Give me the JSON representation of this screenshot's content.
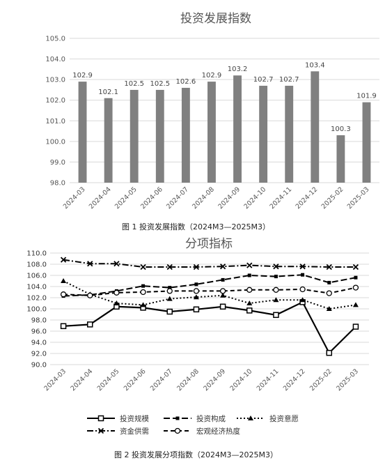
{
  "chart_data": [
    {
      "type": "bar",
      "title": "投资发展指数",
      "caption": "图 1  投资发展指数（2024M3—2025M3）",
      "categories": [
        "2024-03",
        "2024-04",
        "2024-05",
        "2024-06",
        "2024-07",
        "2024-08",
        "2024-09",
        "2024-10",
        "2024-11",
        "2024-12",
        "2025-02",
        "2025-03"
      ],
      "values": [
        102.9,
        102.1,
        102.5,
        102.5,
        102.6,
        102.9,
        103.2,
        102.7,
        102.7,
        103.4,
        100.3,
        101.9
      ],
      "value_labels": [
        "102.9",
        "102.1",
        "102.5",
        "102.5",
        "102.6",
        "102.9",
        "103.2",
        "102.7",
        "102.7",
        "103.4",
        "100.3",
        "101.9"
      ],
      "ylim": [
        98.0,
        105.0
      ],
      "yticks": [
        "98.0",
        "99.0",
        "100.0",
        "101.0",
        "102.0",
        "103.0",
        "104.0",
        "105.0"
      ],
      "grid": true,
      "bar_color": "#808080",
      "xlabel": "",
      "ylabel": ""
    },
    {
      "type": "line",
      "title": "分项指标",
      "caption": "图 2  投资发展分项指数（2024M3—2025M3）",
      "categories": [
        "2024-03",
        "2024-04",
        "2024-05",
        "2024-06",
        "2024-07",
        "2024-08",
        "2024-09",
        "2024-10",
        "2024-11",
        "2024-12",
        "2025-02",
        "2025-03"
      ],
      "ylim": [
        90.0,
        110.0
      ],
      "yticks": [
        "90.0",
        "92.0",
        "94.0",
        "96.0",
        "98.0",
        "100.0",
        "102.0",
        "104.0",
        "106.0",
        "108.0",
        "110.0"
      ],
      "grid": true,
      "legend_position": "bottom",
      "series": [
        {
          "name": "投资规模",
          "values": [
            96.9,
            97.2,
            100.4,
            100.2,
            99.5,
            99.9,
            100.4,
            99.7,
            98.9,
            101.2,
            92.1,
            96.8
          ],
          "style": "solid",
          "marker": "square"
        },
        {
          "name": "投资构成",
          "values": [
            102.3,
            102.5,
            103.2,
            104.1,
            103.8,
            104.4,
            105.2,
            106.0,
            105.8,
            106.1,
            104.7,
            105.6
          ],
          "style": "dash",
          "marker": "smallsquare"
        },
        {
          "name": "投资意愿",
          "values": [
            105.0,
            102.6,
            101.0,
            100.7,
            101.8,
            102.1,
            102.4,
            101.0,
            101.6,
            101.6,
            100.0,
            100.7
          ],
          "style": "dot",
          "marker": "triangle"
        },
        {
          "name": "资金供需",
          "values": [
            108.8,
            108.1,
            108.1,
            107.5,
            107.5,
            107.5,
            107.6,
            107.8,
            107.6,
            107.6,
            107.5,
            107.5
          ],
          "style": "dashdot",
          "marker": "x"
        },
        {
          "name": "宏观经济热度",
          "values": [
            102.6,
            102.4,
            102.9,
            103.0,
            103.2,
            103.2,
            103.2,
            103.4,
            103.4,
            103.5,
            102.8,
            103.8
          ],
          "style": "longdash",
          "marker": "circle"
        }
      ],
      "xlabel": "",
      "ylabel": ""
    }
  ]
}
